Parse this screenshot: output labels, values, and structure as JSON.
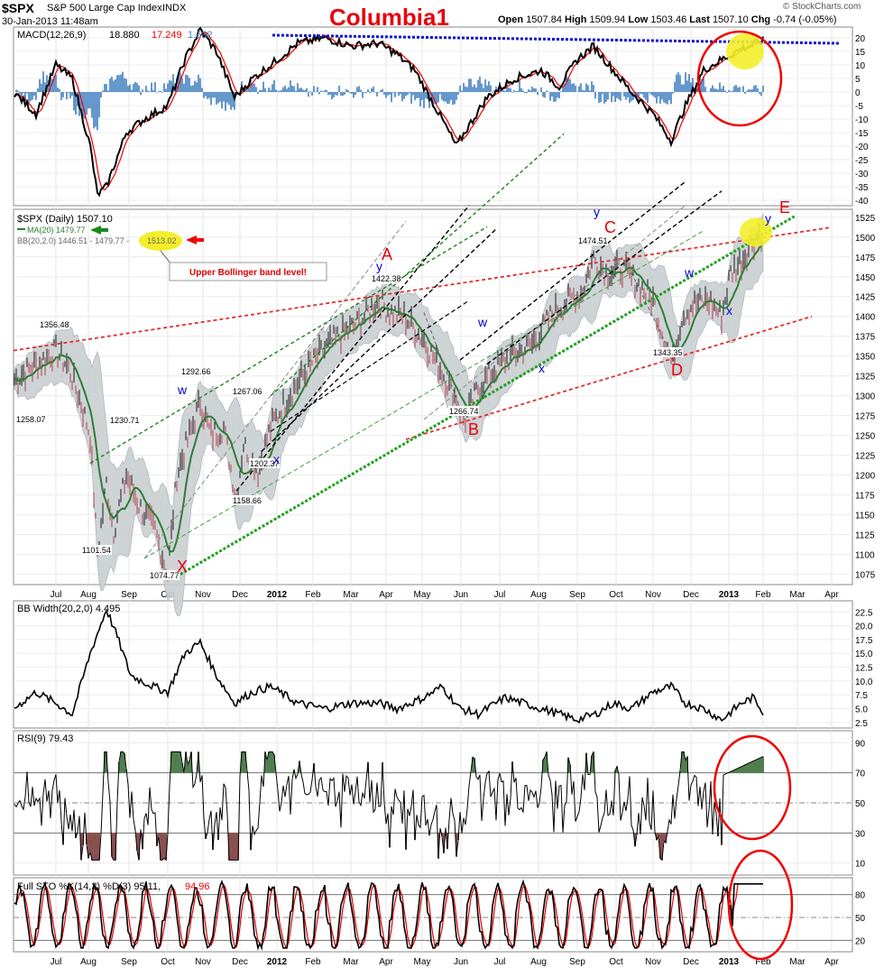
{
  "header": {
    "symbol": "$SPX",
    "description": "S&P 500 Large Cap Index",
    "exchange": "INDX",
    "datetime": "30-Jan-2013 11:48am",
    "watermark": "Columbia1",
    "open_label": "Open",
    "open": "1507.84",
    "high_label": "High",
    "high": "1509.94",
    "low_label": "Low",
    "low": "1503.46",
    "last_label": "Last",
    "last": "1507.10",
    "chg_label": "Chg",
    "chg": "-0.74 (-0.05%)",
    "credit": "© StockCharts.com"
  },
  "colors": {
    "red": "#e8000b",
    "blue": "#0000cc",
    "green": "#2e7d32",
    "band": "#c9cfd2",
    "macd_hist": "#3f7fbf",
    "sto_d": "#dd0000",
    "rsi_fill": "#4f7f4f",
    "rsi_low": "#8a5050",
    "highlight": "#f4ee2a"
  },
  "x_axis": {
    "months": [
      "Jul",
      "Aug",
      "Sep",
      "Oct",
      "Nov",
      "Dec",
      "2012",
      "Feb",
      "Mar",
      "Apr",
      "May",
      "Jun",
      "Jul",
      "Aug",
      "Sep",
      "Oct",
      "Nov",
      "Dec",
      "2013",
      "Feb",
      "Mar",
      "Apr"
    ],
    "bold": [
      "2012",
      "2013"
    ]
  },
  "panels": {
    "macd": {
      "label": "MACD(12,26,9)",
      "v1": "18.880",
      "v2": "17.249",
      "v3": "1.632",
      "ticks": [
        "20",
        "15",
        "10",
        "5",
        "0",
        "-5",
        "-10",
        "-15",
        "-20",
        "-25",
        "-30",
        "-35",
        "-40"
      ],
      "ymin": -42,
      "ymax": 24
    },
    "price": {
      "label": "$SPX (Daily) 1507.10",
      "ma_label": "MA(20) 1479.77",
      "bb_label": "BB(20,2.0) 1446.51 - 1479.77 -",
      "bb_upper": "1513.02",
      "ticks": [
        "1525",
        "1500",
        "1475",
        "1450",
        "1425",
        "1400",
        "1375",
        "1350",
        "1325",
        "1300",
        "1275",
        "1250",
        "1225",
        "1200",
        "1175",
        "1150",
        "1125",
        "1100",
        "1075"
      ],
      "ymin": 1062,
      "ymax": 1535
    },
    "bbw": {
      "label": "BB Width(20,2,0) 4.495",
      "ticks": [
        "22.5",
        "20.0",
        "17.5",
        "15.0",
        "12.5",
        "10.0",
        "7.5",
        "5.0",
        "2.5"
      ],
      "ymin": 1.5,
      "ymax": 24.5
    },
    "rsi": {
      "label": "RSI(9) 79.43",
      "ticks": [
        "90",
        "70",
        "50",
        "30",
        "10"
      ],
      "ymin": 2,
      "ymax": 98
    },
    "sto": {
      "label": "Full STO %K(14,3) %D(3) 95.11,",
      "v2": "94.96",
      "ticks": [
        "80",
        "50",
        "20"
      ],
      "ymin": 5,
      "ymax": 102
    }
  },
  "annotations": {
    "upper_bb_note": "Upper Bollinger band level!",
    "price_labels": [
      "1356.48",
      "1258.07",
      "1101.54",
      "1230.71",
      "1292.66",
      "1074.77",
      "1267.06",
      "1202.37",
      "1158.66",
      "1422.38",
      "1266.74",
      "1474.51",
      "1343.35"
    ],
    "wave_labels": [
      "A",
      "B",
      "C",
      "D",
      "E",
      "X"
    ],
    "minor_labels": [
      "w",
      "x",
      "y"
    ]
  },
  "chart_data": [
    {
      "type": "line",
      "title": "MACD(12,26,9)",
      "ylim": [
        -42,
        24
      ],
      "series": [
        {
          "name": "MACD",
          "value": 18.88
        },
        {
          "name": "Signal",
          "value": 17.249
        },
        {
          "name": "Histogram",
          "value": 1.632
        }
      ]
    },
    {
      "type": "line",
      "title": "$SPX (Daily)",
      "ylim": [
        1062,
        1535
      ],
      "x": [
        "Jul 2011",
        "Aug",
        "Sep",
        "Oct",
        "Nov",
        "Dec",
        "2012",
        "Feb",
        "Mar",
        "Apr",
        "May",
        "Jun",
        "Jul",
        "Aug",
        "Sep",
        "Oct",
        "Nov",
        "Dec",
        "2013",
        "Feb"
      ],
      "series": [
        {
          "name": "$SPX",
          "values": [
            1320,
            1180,
            1150,
            1200,
            1250,
            1230,
            1280,
            1340,
            1380,
            1410,
            1340,
            1310,
            1360,
            1400,
            1440,
            1430,
            1390,
            1420,
            1470,
            1507
          ]
        },
        {
          "name": "MA(20)",
          "values": [
            1320,
            1230,
            1160,
            1180,
            1240,
            1230,
            1265,
            1330,
            1370,
            1400,
            1360,
            1300,
            1345,
            1395,
            1435,
            1440,
            1400,
            1410,
            1460,
            1480
          ]
        }
      ],
      "points": [
        {
          "label": "1356.48",
          "y": 1356.48
        },
        {
          "label": "1258.07",
          "y": 1258.07
        },
        {
          "label": "1101.54",
          "y": 1101.54
        },
        {
          "label": "1230.71",
          "y": 1230.71
        },
        {
          "label": "1292.66",
          "y": 1292.66
        },
        {
          "label": "1074.77",
          "y": 1074.77
        },
        {
          "label": "1267.06",
          "y": 1267.06
        },
        {
          "label": "1202.37",
          "y": 1202.37
        },
        {
          "label": "1158.66",
          "y": 1158.66
        },
        {
          "label": "1422.38",
          "y": 1422.38
        },
        {
          "label": "1266.74",
          "y": 1266.74
        },
        {
          "label": "1474.51",
          "y": 1474.51
        },
        {
          "label": "1343.35",
          "y": 1343.35
        }
      ]
    },
    {
      "type": "line",
      "title": "BB Width(20,2,0)",
      "ylim": [
        1.5,
        24.5
      ],
      "series": [
        {
          "name": "BB Width",
          "value": 4.495
        }
      ]
    },
    {
      "type": "line",
      "title": "RSI(9)",
      "ylim": [
        2,
        98
      ],
      "series": [
        {
          "name": "RSI",
          "value": 79.43
        }
      ]
    },
    {
      "type": "line",
      "title": "Full STO %K(14,3) %D(3)",
      "ylim": [
        5,
        102
      ],
      "series": [
        {
          "name": "%K",
          "value": 95.11
        },
        {
          "name": "%D",
          "value": 94.96
        }
      ]
    }
  ]
}
